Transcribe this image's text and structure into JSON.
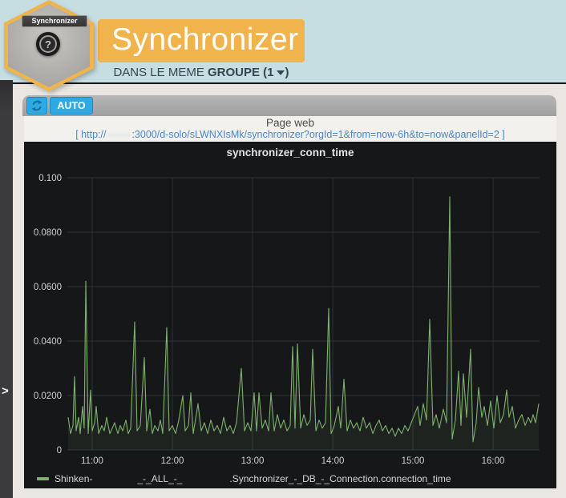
{
  "node_badge": {
    "label": "Synchronizer",
    "help_glyph": "?"
  },
  "header": {
    "title": "Synchronizer"
  },
  "subtitle": {
    "prefix": "DANS LE MEME ",
    "bold": "GROUPE (1",
    "suffix": ")"
  },
  "sidebar": {
    "expand_chevron": ">"
  },
  "toolbar": {
    "auto_label": "AUTO"
  },
  "webpage": {
    "title": "Page web",
    "url_prefix": "[ http://",
    "url_redacted": "·······",
    "url_suffix": ":3000/d-solo/sLWNXIsMk/synchronizer?orgId=1&from=now-6h&to=now&panelId=2 ]"
  },
  "colors": {
    "teal_band": "#c6dee2",
    "orange": "#f1b44c",
    "button_blue": "#2fa9e1",
    "panel_bg": "#161719",
    "grid": "#2c3134",
    "tick_text": "#cfd0d1",
    "series_green": "#7eb26d",
    "url_blue": "#4a86c8"
  },
  "chart_data": {
    "type": "line",
    "title": "synchronizer_conn_time",
    "xlabel": "",
    "ylabel": "",
    "grid": true,
    "legend_position": "bottom-left",
    "x_ticks": [
      "11:00",
      "12:00",
      "13:00",
      "14:00",
      "15:00",
      "16:00"
    ],
    "x_tick_hours": [
      11,
      12,
      13,
      14,
      15,
      16
    ],
    "y_ticks": [
      "0.100",
      "0.0800",
      "0.0600",
      "0.0400",
      "0.0200",
      "0"
    ],
    "y_tick_values": [
      0.1,
      0.08,
      0.06,
      0.04,
      0.02,
      0
    ],
    "xlim_hours": [
      10.69,
      16.58
    ],
    "ylim": [
      0,
      0.1
    ],
    "legend": {
      "swatch_color": "#7eb26d",
      "parts": [
        "Shinken-",
        "_-_ALL_-_",
        ".Synchronizer_-_DB_-_Connection.connection_time"
      ]
    },
    "series": [
      {
        "name": "Shinken-_-_ALL_-_.Synchronizer_-_DB_-_Connection.connection_time",
        "color": "#7eb26d",
        "points_hour_value": [
          [
            10.7,
            0.012
          ],
          [
            10.73,
            0.006
          ],
          [
            10.76,
            0.009
          ],
          [
            10.78,
            0.027
          ],
          [
            10.8,
            0.007
          ],
          [
            10.83,
            0.012
          ],
          [
            10.85,
            0.006
          ],
          [
            10.88,
            0.016
          ],
          [
            10.9,
            0.008
          ],
          [
            10.92,
            0.062
          ],
          [
            10.95,
            0.006
          ],
          [
            10.98,
            0.022
          ],
          [
            11.0,
            0.007
          ],
          [
            11.03,
            0.01
          ],
          [
            11.05,
            0.016
          ],
          [
            11.08,
            0.006
          ],
          [
            11.12,
            0.009
          ],
          [
            11.15,
            0.007
          ],
          [
            11.18,
            0.012
          ],
          [
            11.22,
            0.006
          ],
          [
            11.25,
            0.008
          ],
          [
            11.28,
            0.01
          ],
          [
            11.32,
            0.006
          ],
          [
            11.35,
            0.009
          ],
          [
            11.38,
            0.007
          ],
          [
            11.42,
            0.011
          ],
          [
            11.45,
            0.006
          ],
          [
            11.48,
            0.008
          ],
          [
            11.53,
            0.047
          ],
          [
            11.56,
            0.007
          ],
          [
            11.6,
            0.009
          ],
          [
            11.65,
            0.034
          ],
          [
            11.68,
            0.007
          ],
          [
            11.72,
            0.015
          ],
          [
            11.75,
            0.006
          ],
          [
            11.78,
            0.009
          ],
          [
            11.82,
            0.007
          ],
          [
            11.85,
            0.011
          ],
          [
            11.88,
            0.006
          ],
          [
            11.93,
            0.045
          ],
          [
            11.96,
            0.007
          ],
          [
            12.0,
            0.009
          ],
          [
            12.04,
            0.006
          ],
          [
            12.08,
            0.011
          ],
          [
            12.13,
            0.02
          ],
          [
            12.16,
            0.007
          ],
          [
            12.2,
            0.009
          ],
          [
            12.23,
            0.021
          ],
          [
            12.26,
            0.006
          ],
          [
            12.32,
            0.017
          ],
          [
            12.36,
            0.007
          ],
          [
            12.4,
            0.01
          ],
          [
            12.44,
            0.006
          ],
          [
            12.48,
            0.011
          ],
          [
            12.52,
            0.007
          ],
          [
            12.56,
            0.009
          ],
          [
            12.6,
            0.006
          ],
          [
            12.64,
            0.012
          ],
          [
            12.68,
            0.007
          ],
          [
            12.72,
            0.009
          ],
          [
            12.76,
            0.006
          ],
          [
            12.8,
            0.01
          ],
          [
            12.86,
            0.03
          ],
          [
            12.9,
            0.007
          ],
          [
            12.94,
            0.01
          ],
          [
            12.98,
            0.007
          ],
          [
            13.02,
            0.021
          ],
          [
            13.05,
            0.007
          ],
          [
            13.08,
            0.021
          ],
          [
            13.12,
            0.008
          ],
          [
            13.16,
            0.011
          ],
          [
            13.2,
            0.007
          ],
          [
            13.23,
            0.021
          ],
          [
            13.27,
            0.007
          ],
          [
            13.31,
            0.013
          ],
          [
            13.35,
            0.008
          ],
          [
            13.39,
            0.011
          ],
          [
            13.43,
            0.007
          ],
          [
            13.47,
            0.009
          ],
          [
            13.5,
            0.038
          ],
          [
            13.53,
            0.008
          ],
          [
            13.56,
            0.039
          ],
          [
            13.6,
            0.008
          ],
          [
            13.64,
            0.013
          ],
          [
            13.68,
            0.009
          ],
          [
            13.72,
            0.011
          ],
          [
            13.75,
            0.037
          ],
          [
            13.79,
            0.007
          ],
          [
            13.83,
            0.011
          ],
          [
            13.87,
            0.008
          ],
          [
            13.91,
            0.01
          ],
          [
            13.95,
            0.052
          ],
          [
            13.98,
            0.006
          ],
          [
            14.02,
            0.009
          ],
          [
            14.07,
            0.016
          ],
          [
            14.1,
            0.008
          ],
          [
            14.14,
            0.026
          ],
          [
            14.18,
            0.007
          ],
          [
            14.22,
            0.011
          ],
          [
            14.26,
            0.008
          ],
          [
            14.3,
            0.01
          ],
          [
            14.34,
            0.007
          ],
          [
            14.38,
            0.012
          ],
          [
            14.42,
            0.008
          ],
          [
            14.46,
            0.01
          ],
          [
            14.5,
            0.006
          ],
          [
            14.54,
            0.009
          ],
          [
            14.58,
            0.011
          ],
          [
            14.62,
            0.007
          ],
          [
            14.66,
            0.009
          ],
          [
            14.7,
            0.006
          ],
          [
            14.74,
            0.008
          ],
          [
            14.78,
            0.005
          ],
          [
            14.82,
            0.008
          ],
          [
            14.86,
            0.006
          ],
          [
            14.9,
            0.009
          ],
          [
            14.94,
            0.007
          ],
          [
            14.98,
            0.01
          ],
          [
            15.02,
            0.013
          ],
          [
            15.06,
            0.016
          ],
          [
            15.09,
            0.009
          ],
          [
            15.13,
            0.017
          ],
          [
            15.17,
            0.011
          ],
          [
            15.21,
            0.048
          ],
          [
            15.25,
            0.009
          ],
          [
            15.29,
            0.013
          ],
          [
            15.33,
            0.008
          ],
          [
            15.38,
            0.015
          ],
          [
            15.42,
            0.01
          ],
          [
            15.46,
            0.093
          ],
          [
            15.49,
            0.004
          ],
          [
            15.53,
            0.011
          ],
          [
            15.57,
            0.029
          ],
          [
            15.6,
            0.009
          ],
          [
            15.63,
            0.028
          ],
          [
            15.67,
            0.012
          ],
          [
            15.72,
            0.037
          ],
          [
            15.75,
            0.003
          ],
          [
            15.79,
            0.01
          ],
          [
            15.82,
            0.023
          ],
          [
            15.86,
            0.012
          ],
          [
            15.89,
            0.016
          ],
          [
            15.93,
            0.009
          ],
          [
            15.97,
            0.018
          ],
          [
            16.01,
            0.008
          ],
          [
            16.05,
            0.02
          ],
          [
            16.09,
            0.01
          ],
          [
            16.13,
            0.013
          ],
          [
            16.17,
            0.022
          ],
          [
            16.2,
            0.012
          ],
          [
            16.24,
            0.016
          ],
          [
            16.28,
            0.008
          ],
          [
            16.32,
            0.011
          ],
          [
            16.36,
            0.013
          ],
          [
            16.4,
            0.009
          ],
          [
            16.44,
            0.012
          ],
          [
            16.47,
            0.01
          ],
          [
            16.5,
            0.013
          ],
          [
            16.53,
            0.01
          ],
          [
            16.57,
            0.017
          ]
        ]
      }
    ]
  }
}
